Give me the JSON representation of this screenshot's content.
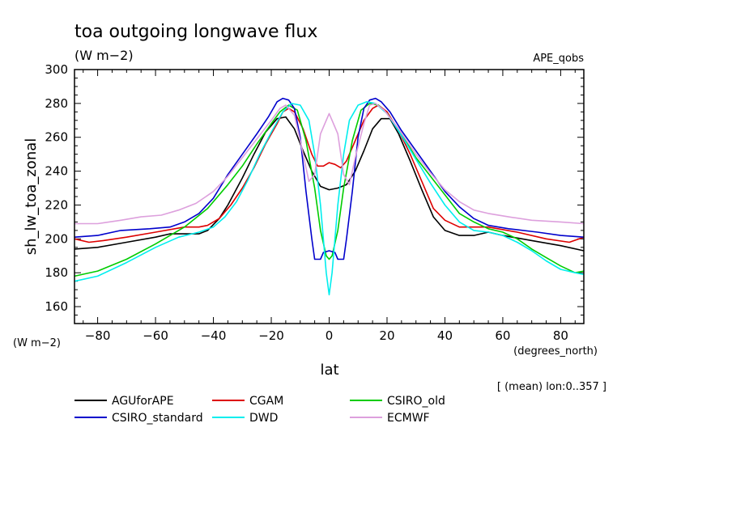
{
  "chart_data": {
    "type": "line",
    "title": "toa outgoing longwave flux",
    "subtitle": "(W m−2)",
    "experiment": "APE_qobs",
    "xlabel": "lat",
    "xunits": "(degrees_north)",
    "ylabel": "sh_lw_toa_zonal",
    "yunits": "(W m−2)",
    "note": "[ (mean) lon:0..357 ]",
    "xlim": [
      -88,
      88
    ],
    "ylim": [
      150,
      300
    ],
    "xticks": [
      -80,
      -60,
      -40,
      -20,
      0,
      20,
      40,
      60,
      80
    ],
    "yticks": [
      160,
      180,
      200,
      220,
      240,
      260,
      280,
      300
    ],
    "grid": false,
    "legend_position": "bottom",
    "series": [
      {
        "name": "AGUforAPE",
        "color": "#000000",
        "points": [
          [
            -88,
            194
          ],
          [
            -80,
            195
          ],
          [
            -70,
            198
          ],
          [
            -60,
            201
          ],
          [
            -55,
            203
          ],
          [
            -50,
            203
          ],
          [
            -45,
            203
          ],
          [
            -42,
            205
          ],
          [
            -38,
            212
          ],
          [
            -35,
            220
          ],
          [
            -30,
            236
          ],
          [
            -26,
            250
          ],
          [
            -22,
            263
          ],
          [
            -18,
            271
          ],
          [
            -15,
            272
          ],
          [
            -12,
            265
          ],
          [
            -9,
            252
          ],
          [
            -6,
            240
          ],
          [
            -3,
            231
          ],
          [
            0,
            229
          ],
          [
            3,
            230
          ],
          [
            6,
            232
          ],
          [
            9,
            240
          ],
          [
            12,
            252
          ],
          [
            15,
            265
          ],
          [
            18,
            271
          ],
          [
            21,
            271
          ],
          [
            24,
            262
          ],
          [
            28,
            246
          ],
          [
            32,
            229
          ],
          [
            36,
            213
          ],
          [
            40,
            205
          ],
          [
            45,
            202
          ],
          [
            50,
            202
          ],
          [
            55,
            204
          ],
          [
            60,
            202
          ],
          [
            70,
            199
          ],
          [
            80,
            196
          ],
          [
            88,
            193
          ]
        ]
      },
      {
        "name": "CGAM",
        "color": "#dd0000",
        "points": [
          [
            -88,
            200
          ],
          [
            -83,
            198
          ],
          [
            -78,
            199
          ],
          [
            -70,
            201
          ],
          [
            -60,
            204
          ],
          [
            -50,
            207
          ],
          [
            -45,
            207
          ],
          [
            -42,
            208
          ],
          [
            -38,
            212
          ],
          [
            -34,
            220
          ],
          [
            -30,
            230
          ],
          [
            -26,
            242
          ],
          [
            -22,
            256
          ],
          [
            -18,
            268
          ],
          [
            -16,
            275
          ],
          [
            -14,
            277
          ],
          [
            -12,
            275
          ],
          [
            -9,
            265
          ],
          [
            -6,
            250
          ],
          [
            -4,
            243
          ],
          [
            -2,
            243
          ],
          [
            0,
            245
          ],
          [
            2,
            244
          ],
          [
            4,
            242
          ],
          [
            6,
            246
          ],
          [
            9,
            258
          ],
          [
            12,
            270
          ],
          [
            15,
            277
          ],
          [
            17,
            279
          ],
          [
            20,
            275
          ],
          [
            24,
            264
          ],
          [
            28,
            250
          ],
          [
            32,
            234
          ],
          [
            36,
            218
          ],
          [
            40,
            211
          ],
          [
            45,
            207
          ],
          [
            55,
            207
          ],
          [
            65,
            204
          ],
          [
            75,
            200
          ],
          [
            83,
            198
          ],
          [
            88,
            201
          ]
        ]
      },
      {
        "name": "CSIRO_old",
        "color": "#00cc00",
        "points": [
          [
            -88,
            178
          ],
          [
            -80,
            181
          ],
          [
            -70,
            188
          ],
          [
            -60,
            197
          ],
          [
            -50,
            207
          ],
          [
            -42,
            218
          ],
          [
            -35,
            232
          ],
          [
            -30,
            243
          ],
          [
            -25,
            256
          ],
          [
            -20,
            268
          ],
          [
            -17,
            275
          ],
          [
            -14,
            279
          ],
          [
            -11,
            276
          ],
          [
            -8,
            258
          ],
          [
            -5,
            230
          ],
          [
            -3,
            205
          ],
          [
            -1,
            190
          ],
          [
            0,
            188
          ],
          [
            1,
            190
          ],
          [
            3,
            205
          ],
          [
            5,
            230
          ],
          [
            8,
            258
          ],
          [
            11,
            276
          ],
          [
            14,
            280
          ],
          [
            17,
            279
          ],
          [
            20,
            274
          ],
          [
            25,
            262
          ],
          [
            30,
            248
          ],
          [
            35,
            237
          ],
          [
            40,
            226
          ],
          [
            45,
            215
          ],
          [
            50,
            210
          ],
          [
            55,
            206
          ],
          [
            60,
            204
          ],
          [
            65,
            200
          ],
          [
            70,
            194
          ],
          [
            75,
            189
          ],
          [
            80,
            184
          ],
          [
            85,
            180
          ],
          [
            88,
            181
          ]
        ]
      },
      {
        "name": "CSIRO_standard",
        "color": "#0000cc",
        "points": [
          [
            -88,
            201
          ],
          [
            -80,
            202
          ],
          [
            -72,
            205
          ],
          [
            -62,
            206
          ],
          [
            -55,
            207
          ],
          [
            -50,
            210
          ],
          [
            -45,
            215
          ],
          [
            -40,
            224
          ],
          [
            -35,
            238
          ],
          [
            -30,
            250
          ],
          [
            -25,
            262
          ],
          [
            -21,
            272
          ],
          [
            -18,
            281
          ],
          [
            -16,
            283
          ],
          [
            -14,
            282
          ],
          [
            -12,
            277
          ],
          [
            -10,
            260
          ],
          [
            -8,
            228
          ],
          [
            -6,
            200
          ],
          [
            -5,
            188
          ],
          [
            -3,
            188
          ],
          [
            -2,
            192
          ],
          [
            0,
            193
          ],
          [
            2,
            192
          ],
          [
            3,
            188
          ],
          [
            5,
            188
          ],
          [
            6,
            200
          ],
          [
            8,
            228
          ],
          [
            10,
            260
          ],
          [
            12,
            277
          ],
          [
            14,
            282
          ],
          [
            16,
            283
          ],
          [
            18,
            281
          ],
          [
            21,
            275
          ],
          [
            25,
            264
          ],
          [
            30,
            252
          ],
          [
            35,
            240
          ],
          [
            40,
            228
          ],
          [
            45,
            219
          ],
          [
            50,
            212
          ],
          [
            55,
            208
          ],
          [
            62,
            206
          ],
          [
            72,
            204
          ],
          [
            80,
            202
          ],
          [
            88,
            201
          ]
        ]
      },
      {
        "name": "DWD",
        "color": "#00eeee",
        "points": [
          [
            -88,
            175
          ],
          [
            -80,
            178
          ],
          [
            -70,
            186
          ],
          [
            -60,
            195
          ],
          [
            -52,
            201
          ],
          [
            -45,
            204
          ],
          [
            -40,
            207
          ],
          [
            -36,
            213
          ],
          [
            -32,
            222
          ],
          [
            -28,
            235
          ],
          [
            -24,
            250
          ],
          [
            -20,
            263
          ],
          [
            -16,
            275
          ],
          [
            -13,
            280
          ],
          [
            -10,
            279
          ],
          [
            -7,
            270
          ],
          [
            -5,
            250
          ],
          [
            -3,
            220
          ],
          [
            -1,
            180
          ],
          [
            0,
            167
          ],
          [
            1,
            180
          ],
          [
            3,
            220
          ],
          [
            5,
            250
          ],
          [
            7,
            270
          ],
          [
            10,
            279
          ],
          [
            13,
            281
          ],
          [
            16,
            280
          ],
          [
            20,
            274
          ],
          [
            25,
            261
          ],
          [
            30,
            247
          ],
          [
            35,
            233
          ],
          [
            40,
            220
          ],
          [
            45,
            210
          ],
          [
            50,
            205
          ],
          [
            55,
            204
          ],
          [
            60,
            202
          ],
          [
            65,
            198
          ],
          [
            70,
            193
          ],
          [
            75,
            187
          ],
          [
            80,
            182
          ],
          [
            85,
            180
          ],
          [
            88,
            179
          ]
        ]
      },
      {
        "name": "ECMWF",
        "color": "#dda0dd",
        "points": [
          [
            -88,
            209
          ],
          [
            -80,
            209
          ],
          [
            -72,
            211
          ],
          [
            -65,
            213
          ],
          [
            -58,
            214
          ],
          [
            -52,
            217
          ],
          [
            -46,
            221
          ],
          [
            -40,
            228
          ],
          [
            -35,
            237
          ],
          [
            -30,
            248
          ],
          [
            -25,
            259
          ],
          [
            -20,
            270
          ],
          [
            -17,
            277
          ],
          [
            -15,
            279
          ],
          [
            -12,
            273
          ],
          [
            -10,
            258
          ],
          [
            -8,
            242
          ],
          [
            -7,
            234
          ],
          [
            -5,
            238
          ],
          [
            -3,
            262
          ],
          [
            -1,
            270
          ],
          [
            0,
            274
          ],
          [
            1,
            270
          ],
          [
            3,
            262
          ],
          [
            5,
            238
          ],
          [
            7,
            232
          ],
          [
            9,
            248
          ],
          [
            12,
            268
          ],
          [
            14,
            279
          ],
          [
            16,
            280
          ],
          [
            19,
            276
          ],
          [
            24,
            265
          ],
          [
            30,
            250
          ],
          [
            35,
            239
          ],
          [
            40,
            229
          ],
          [
            45,
            222
          ],
          [
            50,
            217
          ],
          [
            55,
            215
          ],
          [
            62,
            213
          ],
          [
            70,
            211
          ],
          [
            80,
            210
          ],
          [
            88,
            209
          ]
        ]
      }
    ]
  }
}
